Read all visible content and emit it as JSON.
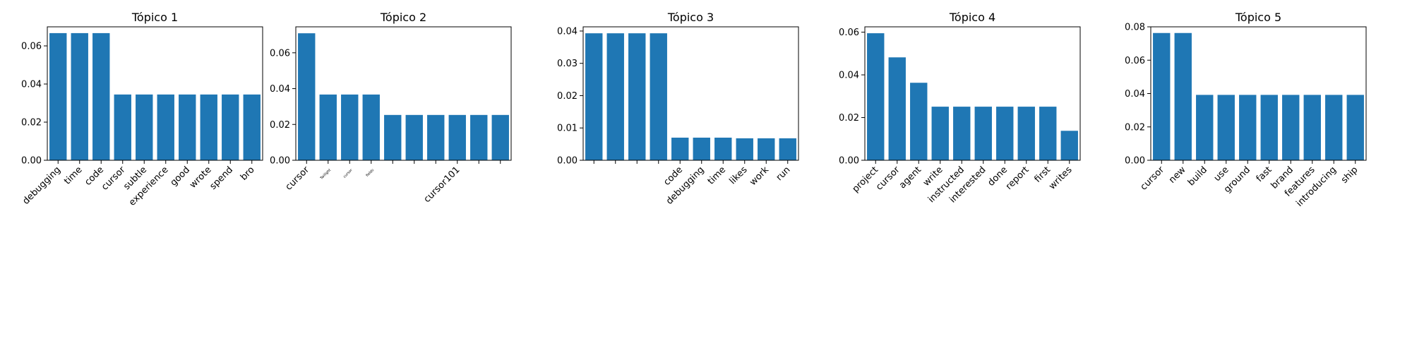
{
  "chart_data": [
    {
      "type": "bar",
      "title": "Tópico 1",
      "xlabel": "",
      "ylabel": "",
      "ylim": [
        0,
        0.07
      ],
      "yticks": [
        0.0,
        0.02,
        0.04,
        0.06
      ],
      "ytick_labels": [
        "0.00",
        "0.02",
        "0.04",
        "0.06"
      ],
      "categories": [
        "debugging",
        "time",
        "code",
        "cursor",
        "subtle",
        "experience",
        "good",
        "wrote",
        "spend",
        "bro"
      ],
      "values": [
        0.0667,
        0.0667,
        0.0667,
        0.0345,
        0.0345,
        0.0345,
        0.0345,
        0.0345,
        0.0345,
        0.0345
      ],
      "color": "#1f77b4"
    },
    {
      "type": "bar",
      "title": "Tópico 2",
      "xlabel": "",
      "ylabel": "",
      "ylim": [
        0,
        0.0745
      ],
      "yticks": [
        0.0,
        0.02,
        0.04,
        0.06
      ],
      "ytick_labels": [
        "0.00",
        "0.02",
        "0.04",
        "0.06"
      ],
      "categories": [
        "cursor",
        "Twilight",
        "cursor",
        "fields",
        "",
        "",
        "",
        "cursor101",
        "",
        ""
      ],
      "small_labels": [
        false,
        true,
        true,
        true,
        false,
        false,
        false,
        false,
        false,
        false
      ],
      "values": [
        0.0709,
        0.0367,
        0.0367,
        0.0367,
        0.0253,
        0.0253,
        0.0253,
        0.0253,
        0.0253,
        0.0253
      ],
      "color": "#1f77b4"
    },
    {
      "type": "bar",
      "title": "Tópico 3",
      "xlabel": "",
      "ylabel": "",
      "ylim": [
        0,
        0.0413
      ],
      "yticks": [
        0.0,
        0.01,
        0.02,
        0.03,
        0.04
      ],
      "ytick_labels": [
        "0.00",
        "0.01",
        "0.02",
        "0.03",
        "0.04"
      ],
      "categories": [
        "",
        "",
        "",
        "",
        "code",
        "debugging",
        "time",
        "likes",
        "work",
        "run"
      ],
      "values": [
        0.0393,
        0.0393,
        0.0393,
        0.0393,
        0.007,
        0.007,
        0.007,
        0.0068,
        0.0068,
        0.0068
      ],
      "color": "#1f77b4"
    },
    {
      "type": "bar",
      "title": "Tópico 4",
      "xlabel": "",
      "ylabel": "",
      "ylim": [
        0,
        0.0625
      ],
      "yticks": [
        0.0,
        0.02,
        0.04,
        0.06
      ],
      "ytick_labels": [
        "0.00",
        "0.02",
        "0.04",
        "0.06"
      ],
      "categories": [
        "project",
        "cursor",
        "agent",
        "write",
        "instructed",
        "interested",
        "done",
        "report",
        "first",
        "writes"
      ],
      "values": [
        0.0595,
        0.0482,
        0.0363,
        0.0251,
        0.0251,
        0.0251,
        0.0251,
        0.0251,
        0.0251,
        0.0138
      ],
      "color": "#1f77b4"
    },
    {
      "type": "bar",
      "title": "Tópico 5",
      "xlabel": "",
      "ylabel": "",
      "ylim": [
        0,
        0.08
      ],
      "yticks": [
        0.0,
        0.02,
        0.04,
        0.06,
        0.08
      ],
      "ytick_labels": [
        "0.00",
        "0.02",
        "0.04",
        "0.06",
        "0.08"
      ],
      "categories": [
        "cursor",
        "new",
        "build",
        "use",
        "ground",
        "fast",
        "brand",
        "features",
        "introducing",
        "ship"
      ],
      "values": [
        0.0763,
        0.0763,
        0.0392,
        0.0392,
        0.0392,
        0.0392,
        0.0392,
        0.0392,
        0.0392,
        0.0392
      ],
      "color": "#1f77b4"
    }
  ]
}
